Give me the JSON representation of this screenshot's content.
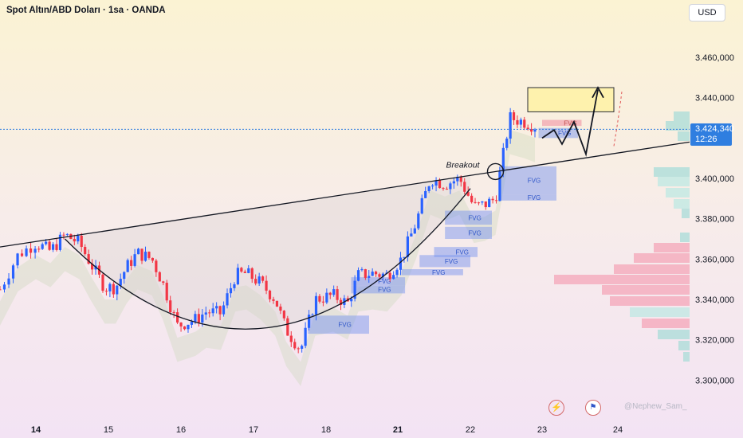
{
  "header": {
    "symbol_title": "Spot Altın/ABD Doları · 1sa · OANDA",
    "currency": "USD"
  },
  "price_tag": {
    "price": "3.424,340",
    "countdown": "12:26"
  },
  "watermark": "@Nephew_Sam_",
  "icons": {
    "flash": "lightning-icon",
    "us_flag": "us-flag-icon"
  },
  "colors": {
    "up": "#2962ff",
    "down": "#f23645",
    "fvg": "#4a6ee0",
    "breakout_line": "#131722",
    "target_box": "#fff0a0",
    "price_tag": "#2f7ee0"
  },
  "chart_data": {
    "type": "candlestick",
    "title": "Spot Altın/ABD Doları · 1sa · OANDA",
    "y_axis": {
      "ticks": [
        "3.460,000",
        "3.440,000",
        "3.424,340",
        "3.400,000",
        "3.380,000",
        "3.360,000",
        "3.340,000",
        "3.320,000",
        "3.300,000"
      ],
      "values": [
        3460,
        3440,
        3400,
        3380,
        3360,
        3340,
        3320,
        3300
      ],
      "range": [
        3288,
        3470
      ]
    },
    "x_axis": {
      "ticks": [
        "14",
        "15",
        "16",
        "17",
        "18",
        "21",
        "22",
        "23",
        "24"
      ],
      "bold": [
        "14",
        "21"
      ]
    },
    "current_price": 3424.34,
    "close_path": [
      {
        "day": 13.6,
        "price": 3345
      },
      {
        "day": 13.8,
        "price": 3362
      },
      {
        "day": 14.0,
        "price": 3368
      },
      {
        "day": 14.2,
        "price": 3364
      },
      {
        "day": 14.4,
        "price": 3372
      },
      {
        "day": 14.6,
        "price": 3368
      },
      {
        "day": 14.75,
        "price": 3358
      },
      {
        "day": 14.95,
        "price": 3346
      },
      {
        "day": 15.1,
        "price": 3346
      },
      {
        "day": 15.25,
        "price": 3356
      },
      {
        "day": 15.4,
        "price": 3363
      },
      {
        "day": 15.6,
        "price": 3360
      },
      {
        "day": 15.75,
        "price": 3348
      },
      {
        "day": 15.95,
        "price": 3327
      },
      {
        "day": 16.2,
        "price": 3330
      },
      {
        "day": 16.35,
        "price": 3334
      },
      {
        "day": 16.55,
        "price": 3333
      },
      {
        "day": 16.75,
        "price": 3352
      },
      {
        "day": 16.9,
        "price": 3353
      },
      {
        "day": 17.1,
        "price": 3348
      },
      {
        "day": 17.3,
        "price": 3340
      },
      {
        "day": 17.45,
        "price": 3325
      },
      {
        "day": 17.65,
        "price": 3315
      },
      {
        "day": 17.85,
        "price": 3340
      },
      {
        "day": 18.1,
        "price": 3342
      },
      {
        "day": 18.3,
        "price": 3338
      },
      {
        "day": 18.45,
        "price": 3352
      },
      {
        "day": 18.65,
        "price": 3353
      },
      {
        "day": 18.85,
        "price": 3352
      },
      {
        "day": 19.05,
        "price": 3360
      },
      {
        "day": 19.25,
        "price": 3378
      },
      {
        "day": 19.45,
        "price": 3400
      },
      {
        "day": 19.65,
        "price": 3397
      },
      {
        "day": 19.85,
        "price": 3400
      },
      {
        "day": 20.05,
        "price": 3386
      },
      {
        "day": 20.2,
        "price": 3387
      },
      {
        "day": 20.35,
        "price": 3390
      },
      {
        "day": 20.45,
        "price": 3410
      },
      {
        "day": 20.55,
        "price": 3430
      },
      {
        "day": 20.75,
        "price": 3428
      },
      {
        "day": 20.9,
        "price": 3426
      }
    ],
    "neckline": {
      "from": {
        "day": 13.6,
        "price": 3366
      },
      "to": {
        "day": 25.9,
        "price": 3418
      }
    },
    "cup_curve": {
      "left": {
        "day": 14.4,
        "price": 3370
      },
      "bottom": {
        "day": 17.2,
        "price": 3307
      },
      "right": {
        "day": 20.0,
        "price": 3395
      }
    },
    "fvg_zones": [
      {
        "label": "FVG",
        "d0": 17.75,
        "d1": 18.6,
        "p0": 3332,
        "p1": 3323
      },
      {
        "label": "FVG",
        "d0": 18.35,
        "d1": 19.1,
        "p0": 3351,
        "p1": 3347
      },
      {
        "label": "FVG",
        "d0": 18.35,
        "d1": 19.1,
        "p0": 3347,
        "p1": 3343
      },
      {
        "label": "FVG",
        "d0": 19.05,
        "d1": 19.9,
        "p0": 3355,
        "p1": 3352
      },
      {
        "label": "FVG",
        "d0": 19.3,
        "d1": 20.0,
        "p0": 3362,
        "p1": 3356
      },
      {
        "label": "FVG",
        "d0": 19.5,
        "d1": 20.1,
        "p0": 3366,
        "p1": 3361
      },
      {
        "label": "FVG",
        "d0": 19.65,
        "d1": 20.3,
        "p0": 3376,
        "p1": 3370
      },
      {
        "label": "FVG",
        "d0": 19.65,
        "d1": 20.3,
        "p0": 3384,
        "p1": 3377
      },
      {
        "label": "FVG",
        "d0": 20.4,
        "d1": 21.2,
        "p0": 3406,
        "p1": 3392
      },
      {
        "label": "FVG",
        "d0": 20.4,
        "d1": 21.2,
        "p0": 3392,
        "p1": 3389
      },
      {
        "label": "FVG",
        "d0": 20.95,
        "d1": 21.5,
        "p0": 3425,
        "p1": 3420
      }
    ],
    "bearish_fvg": [
      {
        "label": "FVG",
        "d0": 21.0,
        "d1": 21.55,
        "p0": 3429,
        "p1": 3426
      }
    ],
    "target_box": {
      "d0": 20.8,
      "d1": 22.0,
      "p0": 3445,
      "p1": 3433
    },
    "annotations": [
      {
        "text": "Breakout",
        "day": 19.75,
        "price": 3407
      }
    ]
  }
}
